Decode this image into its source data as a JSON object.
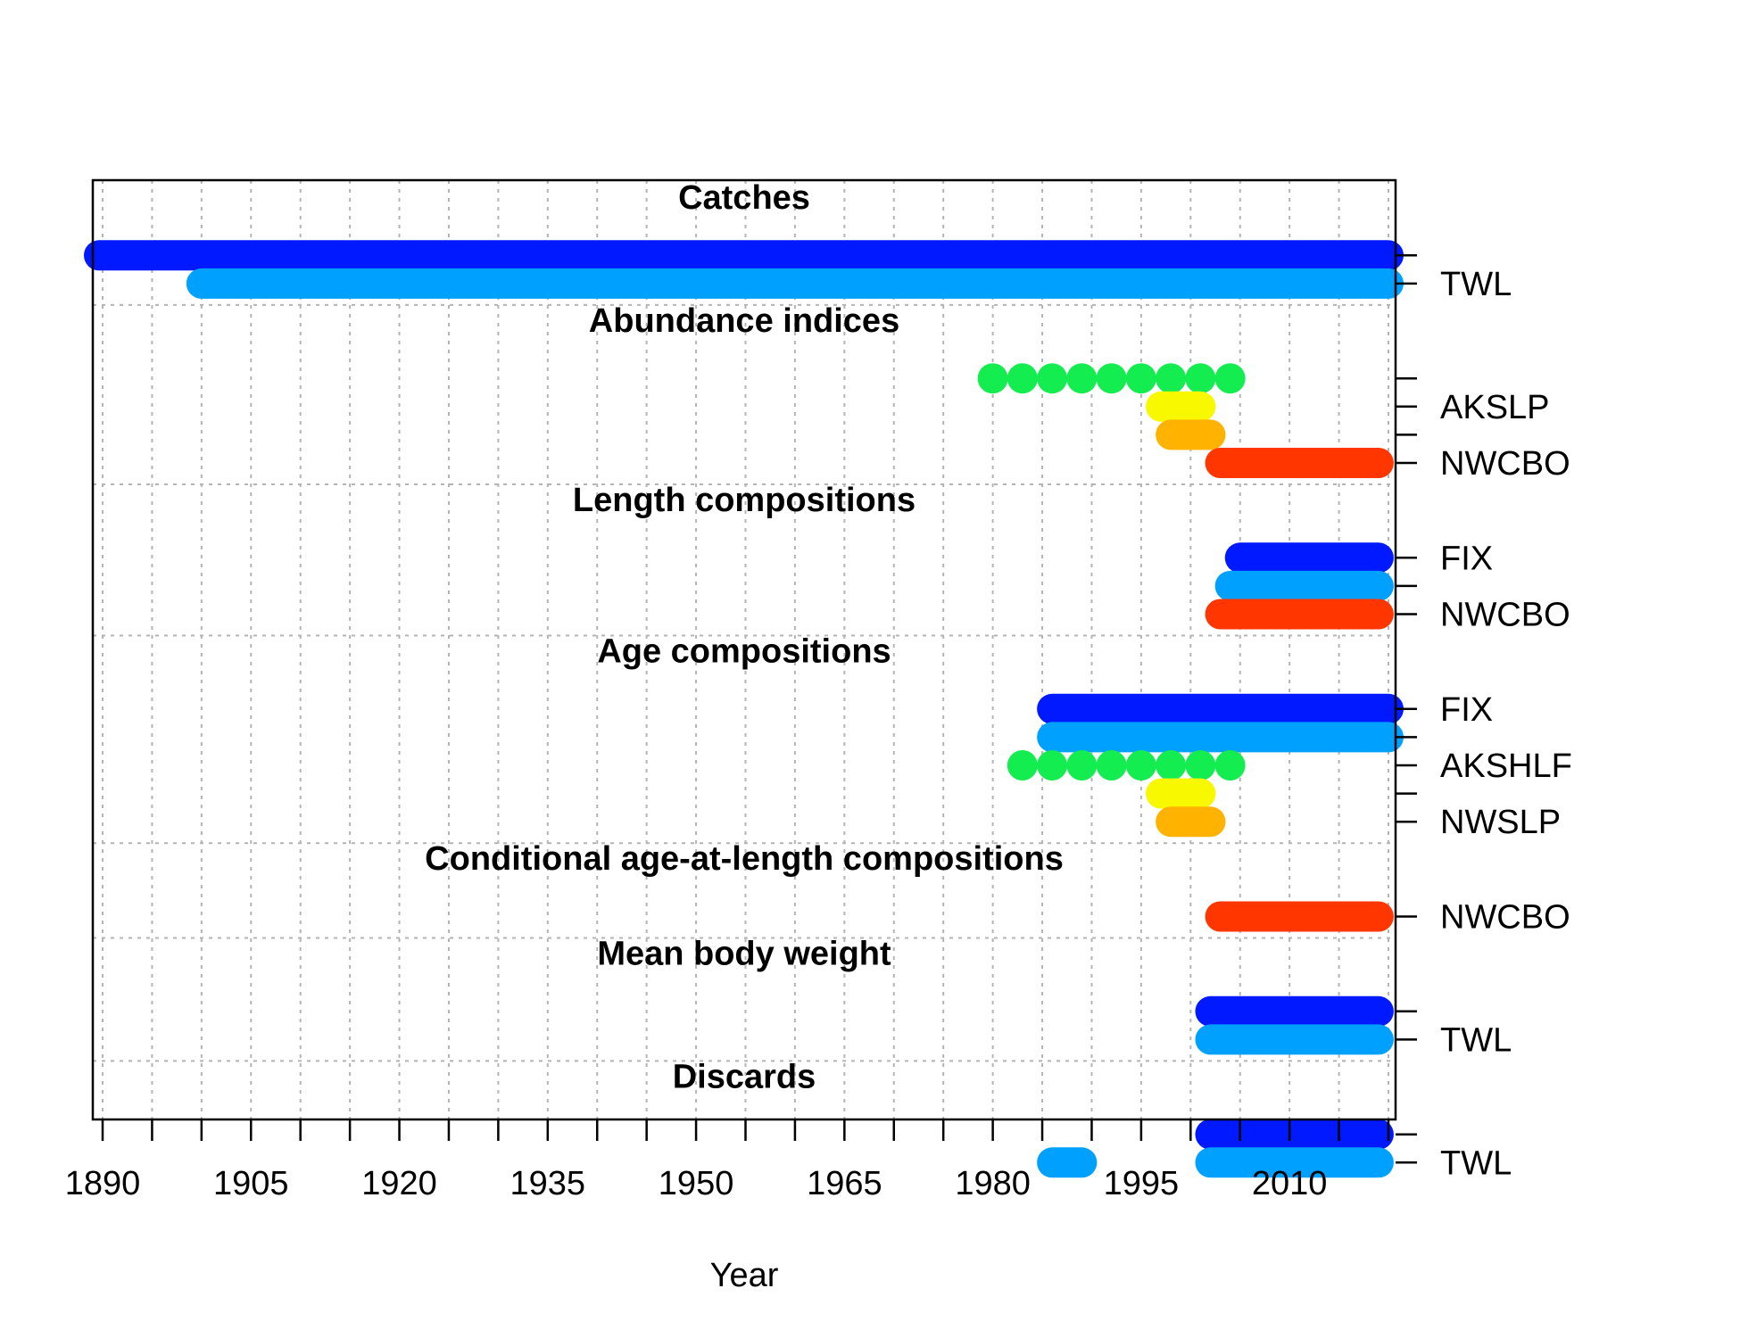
{
  "chart_data": {
    "type": "timeline",
    "xlabel": "Year",
    "xlim": [
      1889,
      2021
    ],
    "x_ticks": [
      1890,
      1905,
      1920,
      1935,
      1950,
      1965,
      1980,
      1995,
      2010
    ],
    "grid": true,
    "colors": {
      "dark_blue": "#0019FF",
      "light_blue": "#00A0FF",
      "green": "#14ED50",
      "yellow": "#F8F800",
      "orange": "#FFB300",
      "red": "#FF3600"
    },
    "sections": [
      {
        "title": "Catches",
        "fleets": [
          {
            "label": "",
            "color": "#0019FF",
            "years": [
              [
                1889,
                2020
              ]
            ]
          },
          {
            "label": "TWL",
            "color": "#00A0FF",
            "years": [
              [
                1900,
                2020
              ]
            ]
          }
        ]
      },
      {
        "title": "Abundance indices",
        "fleets": [
          {
            "label": "",
            "color": "#14ED50",
            "points": [
              1980,
              1983,
              1986,
              1989,
              1992,
              1995,
              1998,
              2001,
              2004
            ]
          },
          {
            "label": "AKSLP",
            "color": "#F8F800",
            "years": [
              [
                1997,
                2001
              ]
            ]
          },
          {
            "label": "",
            "color": "#FFB300",
            "years": [
              [
                1998,
                2002
              ]
            ]
          },
          {
            "label": "NWCBO",
            "color": "#FF3600",
            "years": [
              [
                2003,
                2019
              ]
            ]
          }
        ]
      },
      {
        "title": "Length compositions",
        "fleets": [
          {
            "label": "FIX",
            "color": "#0019FF",
            "years": [
              [
                2005,
                2019
              ]
            ]
          },
          {
            "label": "",
            "color": "#00A0FF",
            "years": [
              [
                2004,
                2019
              ]
            ]
          },
          {
            "label": "NWCBO",
            "color": "#FF3600",
            "years": [
              [
                2003,
                2019
              ]
            ]
          }
        ]
      },
      {
        "title": "Age compositions",
        "fleets": [
          {
            "label": "FIX",
            "color": "#0019FF",
            "years": [
              [
                1986,
                2020
              ]
            ]
          },
          {
            "label": "",
            "color": "#00A0FF",
            "years": [
              [
                1986,
                2020
              ]
            ]
          },
          {
            "label": "AKSHLF",
            "color": "#14ED50",
            "points": [
              1983,
              1986,
              1989,
              1992,
              1995,
              1998,
              2001,
              2004
            ]
          },
          {
            "label": "",
            "color": "#F8F800",
            "years": [
              [
                1997,
                2001
              ]
            ]
          },
          {
            "label": "NWSLP",
            "color": "#FFB300",
            "years": [
              [
                1998,
                2002
              ]
            ]
          }
        ]
      },
      {
        "title": "Conditional age-at-length compositions",
        "fleets": [
          {
            "label": "NWCBO",
            "color": "#FF3600",
            "years": [
              [
                2003,
                2019
              ]
            ]
          }
        ]
      },
      {
        "title": "Mean body weight",
        "fleets": [
          {
            "label": "",
            "color": "#0019FF",
            "years": [
              [
                2002,
                2019
              ]
            ]
          },
          {
            "label": "TWL",
            "color": "#00A0FF",
            "years": [
              [
                2002,
                2019
              ]
            ]
          }
        ]
      },
      {
        "title": "Discards",
        "fleets": [
          {
            "label": "",
            "color": "#0019FF",
            "years": [
              [
                2002,
                2019
              ]
            ]
          },
          {
            "label": "TWL",
            "color": "#00A0FF",
            "years": [
              [
                1986,
                1989
              ],
              [
                2002,
                2019
              ]
            ]
          }
        ]
      }
    ]
  }
}
